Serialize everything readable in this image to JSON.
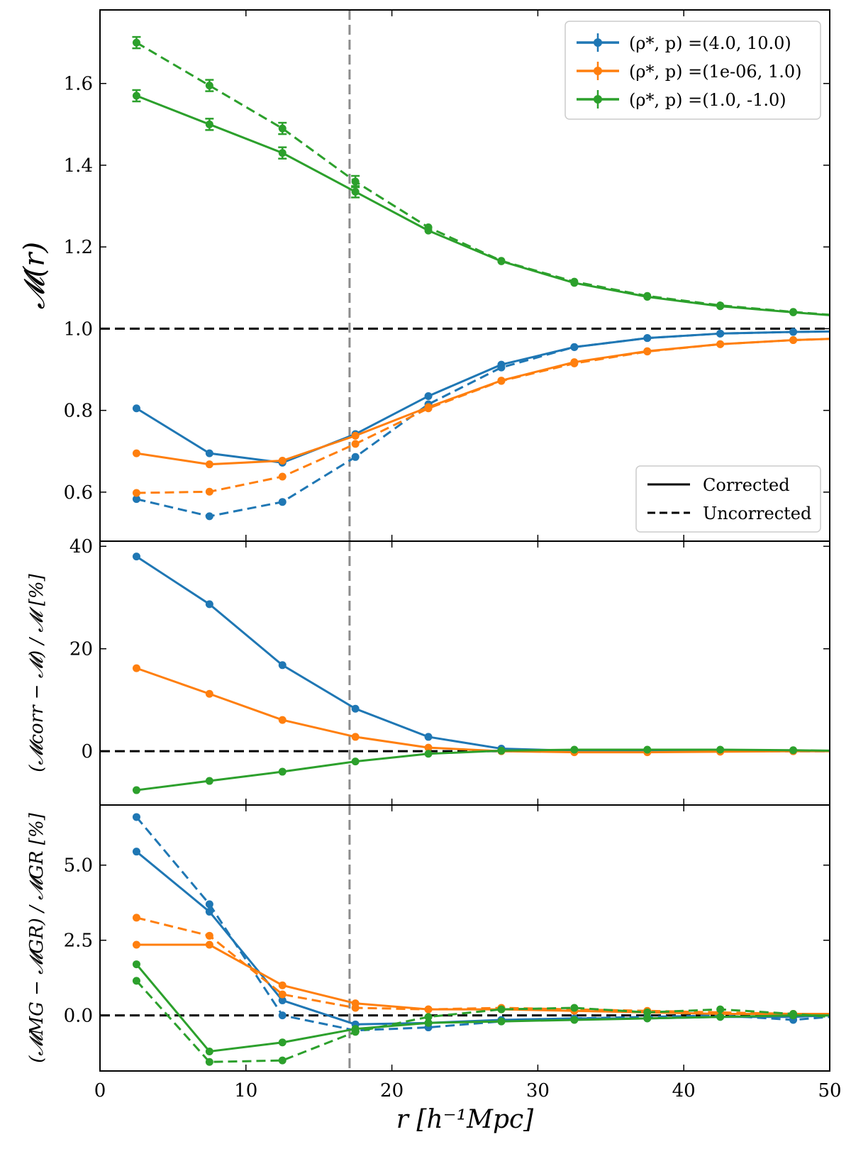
{
  "chart_data": [
    {
      "panel": "top",
      "type": "line",
      "ylabel": "𝓜(r)",
      "xlim": [
        0,
        50
      ],
      "ylim": [
        0.48,
        1.78
      ],
      "yticks": [
        "0.6",
        "0.8",
        "1.0",
        "1.2",
        "1.4",
        "1.6"
      ],
      "ytick_values": [
        0.6,
        0.8,
        1.0,
        1.2,
        1.4,
        1.6
      ],
      "hline": 1.0,
      "vline": 17.1,
      "x": [
        2.5,
        7.5,
        12.5,
        17.5,
        22.5,
        27.5,
        32.5,
        37.5,
        42.5,
        47.5,
        50
      ],
      "series": [
        {
          "name": "(ρ*, p) =(4.0, 10.0)",
          "color": "#1f77b4",
          "style": "corrected",
          "values": [
            0.805,
            0.695,
            0.672,
            0.742,
            0.835,
            0.912,
            0.955,
            0.977,
            0.988,
            0.992,
            0.993
          ]
        },
        {
          "color": "#1f77b4",
          "style": "uncorrected",
          "values": [
            0.583,
            0.541,
            0.576,
            0.686,
            0.815,
            0.905,
            0.955,
            0.977,
            0.988,
            0.992,
            0.993
          ]
        },
        {
          "name": "(ρ*, p) =(1e-06, 1.0)",
          "color": "#ff7f0e",
          "style": "corrected",
          "values": [
            0.695,
            0.668,
            0.677,
            0.738,
            0.808,
            0.873,
            0.918,
            0.945,
            0.962,
            0.972,
            0.975
          ]
        },
        {
          "color": "#ff7f0e",
          "style": "uncorrected",
          "values": [
            0.598,
            0.601,
            0.638,
            0.718,
            0.805,
            0.872,
            0.915,
            0.944,
            0.962,
            0.972,
            0.975
          ]
        },
        {
          "name": "(ρ*, p) =(1.0, -1.0)",
          "color": "#2ca02c",
          "style": "corrected",
          "values": [
            1.57,
            1.5,
            1.43,
            1.335,
            1.24,
            1.165,
            1.112,
            1.078,
            1.055,
            1.04,
            1.033
          ]
        },
        {
          "color": "#2ca02c",
          "style": "uncorrected",
          "values": [
            1.7,
            1.595,
            1.49,
            1.36,
            1.248,
            1.166,
            1.115,
            1.08,
            1.057,
            1.041,
            1.034
          ]
        }
      ],
      "legend": {
        "position": "upper-right",
        "entries": [
          {
            "label": "(ρ*, p) =(4.0, 10.0)",
            "color": "#1f77b4"
          },
          {
            "label": "(ρ*, p) =(1e-06, 1.0)",
            "color": "#ff7f0e"
          },
          {
            "label": "(ρ*, p) =(1.0, -1.0)",
            "color": "#2ca02c"
          }
        ]
      },
      "style_legend": {
        "position": "lower-right",
        "entries": [
          {
            "label": "Corrected",
            "dash": "solid"
          },
          {
            "label": "Uncorrected",
            "dash": "dashed"
          }
        ]
      }
    },
    {
      "panel": "middle",
      "type": "line",
      "ylabel": "(𝓜corr − 𝓜) / 𝓜 [%]",
      "xlim": [
        0,
        50
      ],
      "ylim": [
        -10.5,
        41
      ],
      "yticks": [
        "0",
        "20",
        "40"
      ],
      "ytick_values": [
        0,
        20,
        40
      ],
      "hline": 0,
      "vline": 17.1,
      "x": [
        2.5,
        7.5,
        12.5,
        17.5,
        22.5,
        27.5,
        32.5,
        37.5,
        42.5,
        47.5,
        50
      ],
      "series": [
        {
          "color": "#1f77b4",
          "style": "corrected",
          "values": [
            38.0,
            28.7,
            16.8,
            8.3,
            2.8,
            0.5,
            0.1,
            0.1,
            0.1,
            0.0,
            0.0
          ]
        },
        {
          "color": "#ff7f0e",
          "style": "corrected",
          "values": [
            16.2,
            11.2,
            6.1,
            2.8,
            0.7,
            0.0,
            -0.2,
            -0.2,
            -0.1,
            0.0,
            0.0
          ]
        },
        {
          "color": "#2ca02c",
          "style": "corrected",
          "values": [
            -7.6,
            -5.8,
            -4.0,
            -2.0,
            -0.5,
            0.1,
            0.3,
            0.3,
            0.3,
            0.2,
            0.1
          ]
        }
      ]
    },
    {
      "panel": "bottom",
      "type": "line",
      "ylabel": "(𝓜MG − 𝓜GR) / 𝓜GR [%]",
      "xlabel": "r [h⁻¹Mpc]",
      "xlim": [
        0,
        50
      ],
      "ylim": [
        -1.85,
        7.0
      ],
      "yticks": [
        "0.0",
        "2.5",
        "5.0"
      ],
      "ytick_values": [
        0.0,
        2.5,
        5.0
      ],
      "xticks": [
        "0",
        "10",
        "20",
        "30",
        "40",
        "50"
      ],
      "xtick_values": [
        0,
        10,
        20,
        30,
        40,
        50
      ],
      "hline": 0,
      "vline": 17.1,
      "x": [
        2.5,
        7.5,
        12.5,
        17.5,
        22.5,
        27.5,
        32.5,
        37.5,
        42.5,
        47.5,
        50
      ],
      "series": [
        {
          "color": "#1f77b4",
          "style": "corrected",
          "values": [
            5.45,
            3.45,
            0.5,
            -0.3,
            -0.25,
            -0.15,
            -0.1,
            -0.1,
            -0.05,
            -0.05,
            0.0
          ]
        },
        {
          "color": "#1f77b4",
          "style": "uncorrected",
          "values": [
            6.6,
            3.7,
            0.0,
            -0.5,
            -0.4,
            -0.2,
            -0.1,
            -0.05,
            0.0,
            -0.15,
            -0.05
          ]
        },
        {
          "color": "#ff7f0e",
          "style": "corrected",
          "values": [
            2.35,
            2.35,
            1.0,
            0.4,
            0.2,
            0.2,
            0.15,
            0.1,
            0.05,
            0.05,
            0.05
          ]
        },
        {
          "color": "#ff7f0e",
          "style": "uncorrected",
          "values": [
            3.25,
            2.65,
            0.7,
            0.25,
            0.2,
            0.25,
            0.2,
            0.15,
            0.1,
            0.05,
            0.05
          ]
        },
        {
          "color": "#2ca02c",
          "style": "corrected",
          "values": [
            1.7,
            -1.2,
            -0.9,
            -0.45,
            -0.25,
            -0.2,
            -0.15,
            -0.1,
            -0.05,
            0.0,
            0.0
          ]
        },
        {
          "color": "#2ca02c",
          "style": "uncorrected",
          "values": [
            1.15,
            -1.55,
            -1.5,
            -0.55,
            -0.05,
            0.2,
            0.25,
            0.1,
            0.2,
            0.05,
            -0.05
          ]
        }
      ]
    }
  ]
}
